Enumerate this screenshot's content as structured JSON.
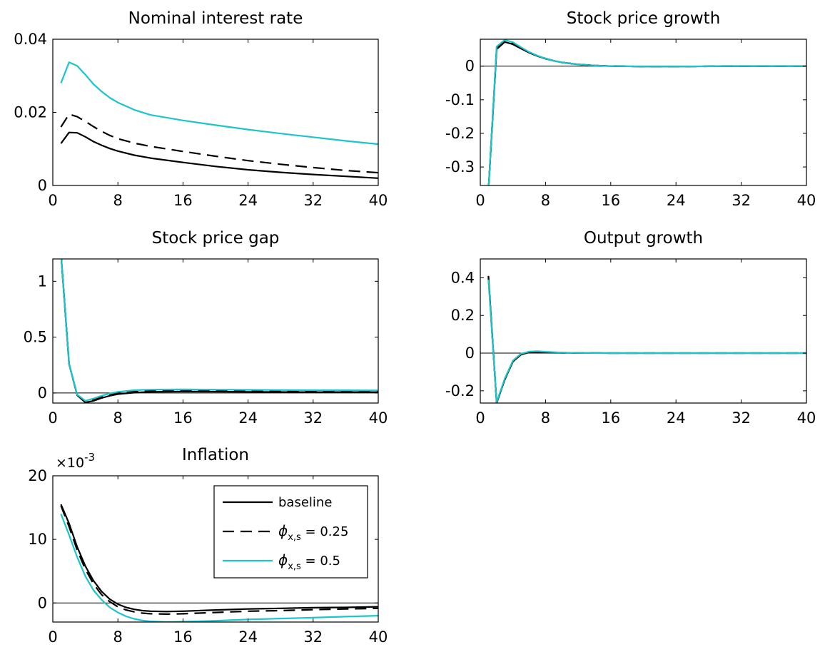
{
  "chart_data": [
    {
      "type": "line",
      "title": "Nominal interest rate",
      "xlim": [
        0,
        40
      ],
      "ylim": [
        0,
        0.04
      ],
      "xticks": [
        0,
        8,
        16,
        24,
        32,
        40
      ],
      "xtick_labels": [
        "0",
        "8",
        "16",
        "24",
        "32",
        "40"
      ],
      "yticks": [
        0,
        0.02,
        0.04
      ],
      "ytick_labels": [
        "0",
        "0.02",
        "0.04"
      ],
      "zero_line": false,
      "series": [
        {
          "style": "baseline",
          "color": "#000000",
          "dash": "solid",
          "x": [
            1,
            2,
            3,
            4,
            5,
            6,
            7,
            8,
            10,
            12,
            16,
            20,
            24,
            28,
            32,
            36,
            40
          ],
          "y": [
            0.0115,
            0.0145,
            0.0144,
            0.0133,
            0.012,
            0.011,
            0.0101,
            0.0094,
            0.0083,
            0.0075,
            0.0063,
            0.0052,
            0.0043,
            0.0036,
            0.003,
            0.0025,
            0.002
          ]
        },
        {
          "style": "phi_025",
          "color": "#000000",
          "dash": "dashed",
          "x": [
            1,
            2,
            3,
            4,
            5,
            6,
            7,
            8,
            10,
            12,
            16,
            20,
            24,
            28,
            32,
            36,
            40
          ],
          "y": [
            0.016,
            0.0195,
            0.0188,
            0.0175,
            0.0161,
            0.0148,
            0.0137,
            0.0128,
            0.0116,
            0.0107,
            0.0093,
            0.008,
            0.0068,
            0.0058,
            0.0049,
            0.0041,
            0.0035
          ]
        },
        {
          "style": "phi_05",
          "color": "#1bc5c9",
          "dash": "solid",
          "x": [
            1,
            2,
            3,
            4,
            5,
            6,
            7,
            8,
            10,
            12,
            16,
            20,
            24,
            28,
            32,
            36,
            40
          ],
          "y": [
            0.028,
            0.0337,
            0.0327,
            0.0303,
            0.0277,
            0.0257,
            0.024,
            0.0227,
            0.0207,
            0.0193,
            0.0178,
            0.0165,
            0.0153,
            0.0142,
            0.0132,
            0.0122,
            0.0113
          ]
        }
      ]
    },
    {
      "type": "line",
      "title": "Stock price growth",
      "xlim": [
        0,
        40
      ],
      "ylim": [
        -0.355,
        0.08
      ],
      "xticks": [
        0,
        8,
        16,
        24,
        32,
        40
      ],
      "xtick_labels": [
        "0",
        "8",
        "16",
        "24",
        "32",
        "40"
      ],
      "yticks": [
        -0.3,
        -0.2,
        -0.1,
        0
      ],
      "ytick_labels": [
        "-0.3",
        "-0.2",
        "-0.1",
        "0"
      ],
      "zero_line": true,
      "series": [
        {
          "style": "baseline",
          "color": "#000000",
          "dash": "solid",
          "x": [
            1,
            2,
            3,
            4,
            5,
            6,
            7,
            8,
            9,
            10,
            12,
            14,
            16,
            20,
            24,
            32,
            40
          ],
          "y": [
            -0.37,
            0.05,
            0.072,
            0.065,
            0.052,
            0.04,
            0.03,
            0.022,
            0.016,
            0.011,
            0.005,
            0.002,
            0.0,
            -0.001,
            -0.001,
            0.0,
            0.0
          ]
        },
        {
          "style": "phi_025",
          "color": "#000000",
          "dash": "dashed",
          "x": [
            1,
            2,
            3,
            4,
            5,
            6,
            7,
            8,
            9,
            10,
            12,
            14,
            16,
            20,
            24,
            32,
            40
          ],
          "y": [
            -0.37,
            0.055,
            0.075,
            0.068,
            0.054,
            0.041,
            0.031,
            0.023,
            0.016,
            0.011,
            0.005,
            0.002,
            0.0,
            -0.001,
            -0.001,
            0.0,
            0.0
          ]
        },
        {
          "style": "phi_05",
          "color": "#1bc5c9",
          "dash": "solid",
          "x": [
            1,
            2,
            3,
            4,
            5,
            6,
            7,
            8,
            9,
            10,
            12,
            14,
            16,
            20,
            24,
            32,
            40
          ],
          "y": [
            -0.37,
            0.058,
            0.078,
            0.071,
            0.056,
            0.042,
            0.031,
            0.023,
            0.016,
            0.011,
            0.005,
            0.002,
            0.0,
            -0.001,
            -0.001,
            0.0,
            0.0
          ]
        }
      ]
    },
    {
      "type": "line",
      "title": "Stock price gap",
      "xlim": [
        0,
        40
      ],
      "ylim": [
        -0.09,
        1.2
      ],
      "xticks": [
        0,
        8,
        16,
        24,
        32,
        40
      ],
      "xtick_labels": [
        "0",
        "8",
        "16",
        "24",
        "32",
        "40"
      ],
      "yticks": [
        0,
        0.5,
        1
      ],
      "ytick_labels": [
        "0",
        "0.5",
        "1"
      ],
      "zero_line": true,
      "series": [
        {
          "style": "baseline",
          "color": "#000000",
          "dash": "solid",
          "x": [
            1,
            2,
            3,
            4,
            5,
            6,
            7,
            8,
            10,
            12,
            16,
            20,
            24,
            32,
            40
          ],
          "y": [
            1.25,
            0.26,
            -0.02,
            -0.085,
            -0.07,
            -0.045,
            -0.025,
            -0.01,
            0.003,
            0.01,
            0.013,
            0.012,
            0.01,
            0.008,
            0.007
          ]
        },
        {
          "style": "phi_025",
          "color": "#000000",
          "dash": "dashed",
          "x": [
            1,
            2,
            3,
            4,
            5,
            6,
            7,
            8,
            10,
            12,
            16,
            20,
            24,
            32,
            40
          ],
          "y": [
            1.25,
            0.26,
            -0.02,
            -0.078,
            -0.06,
            -0.037,
            -0.017,
            -0.002,
            0.012,
            0.018,
            0.022,
            0.021,
            0.018,
            0.015,
            0.014
          ]
        },
        {
          "style": "phi_05",
          "color": "#1bc5c9",
          "dash": "solid",
          "x": [
            1,
            2,
            3,
            4,
            5,
            6,
            7,
            8,
            10,
            12,
            16,
            20,
            24,
            32,
            40
          ],
          "y": [
            1.25,
            0.26,
            -0.015,
            -0.07,
            -0.05,
            -0.025,
            -0.005,
            0.01,
            0.025,
            0.03,
            0.032,
            0.03,
            0.028,
            0.025,
            0.023
          ]
        }
      ]
    },
    {
      "type": "line",
      "title": "Output growth",
      "xlim": [
        0,
        40
      ],
      "ylim": [
        -0.265,
        0.5
      ],
      "xticks": [
        0,
        8,
        16,
        24,
        32,
        40
      ],
      "xtick_labels": [
        "0",
        "8",
        "16",
        "24",
        "32",
        "40"
      ],
      "yticks": [
        -0.2,
        0,
        0.2,
        0.4
      ],
      "ytick_labels": [
        "-0.2",
        "0",
        "0.2",
        "0.4"
      ],
      "zero_line": true,
      "series": [
        {
          "style": "baseline",
          "color": "#000000",
          "dash": "solid",
          "x": [
            1,
            2,
            3,
            4,
            5,
            6,
            7,
            8,
            10,
            12,
            16,
            24,
            32,
            40
          ],
          "y": [
            0.41,
            -0.265,
            -0.14,
            -0.045,
            -0.008,
            0.004,
            0.006,
            0.004,
            0.002,
            0.001,
            0.0,
            0.0,
            0.0,
            0.0
          ]
        },
        {
          "style": "phi_025",
          "color": "#000000",
          "dash": "dashed",
          "x": [
            1,
            2,
            3,
            4,
            5,
            6,
            7,
            8,
            10,
            12,
            16,
            24,
            32,
            40
          ],
          "y": [
            0.4,
            -0.262,
            -0.14,
            -0.044,
            -0.006,
            0.006,
            0.008,
            0.005,
            0.002,
            0.001,
            0.0,
            0.0,
            0.0,
            0.0
          ]
        },
        {
          "style": "phi_05",
          "color": "#1bc5c9",
          "dash": "solid",
          "x": [
            1,
            2,
            3,
            4,
            5,
            6,
            7,
            8,
            10,
            12,
            16,
            24,
            32,
            40
          ],
          "y": [
            0.39,
            -0.26,
            -0.135,
            -0.04,
            -0.003,
            0.008,
            0.01,
            0.007,
            0.003,
            0.001,
            0.0,
            0.0,
            0.0,
            0.0
          ]
        }
      ]
    },
    {
      "type": "line",
      "title": "Inflation",
      "xlim": [
        0,
        40
      ],
      "ylim": [
        -3,
        20
      ],
      "xticks": [
        0,
        8,
        16,
        24,
        32,
        40
      ],
      "xtick_labels": [
        "0",
        "8",
        "16",
        "24",
        "32",
        "40"
      ],
      "yticks": [
        0,
        10,
        20
      ],
      "ytick_labels": [
        "0",
        "10",
        "20"
      ],
      "y_exponent_base": "×10",
      "y_exponent_power": "-3",
      "zero_line": true,
      "legend": {
        "position": "upper-right",
        "entries": [
          {
            "style": "baseline",
            "color": "#000000",
            "dash": "solid",
            "text": "baseline"
          },
          {
            "style": "phi_025",
            "color": "#000000",
            "dash": "dashed",
            "symbol": "ϕ",
            "subscript": "x,s",
            "text": " = 0.25"
          },
          {
            "style": "phi_05",
            "color": "#1bc5c9",
            "dash": "solid",
            "symbol": "ϕ",
            "subscript": "x,s",
            "text": " = 0.5"
          }
        ]
      },
      "series": [
        {
          "style": "baseline",
          "color": "#000000",
          "dash": "solid",
          "x": [
            1,
            2,
            3,
            4,
            5,
            6,
            7,
            8,
            9,
            10,
            11,
            12,
            14,
            16,
            20,
            24,
            28,
            32,
            36,
            40
          ],
          "y": [
            15.5,
            12.5,
            8.8,
            5.8,
            3.5,
            1.8,
            0.6,
            -0.2,
            -0.7,
            -1.0,
            -1.2,
            -1.3,
            -1.35,
            -1.3,
            -1.1,
            -0.95,
            -0.85,
            -0.75,
            -0.7,
            -0.6
          ]
        },
        {
          "style": "phi_025",
          "color": "#000000",
          "dash": "dashed",
          "x": [
            1,
            2,
            3,
            4,
            5,
            6,
            7,
            8,
            9,
            10,
            11,
            12,
            14,
            16,
            20,
            24,
            28,
            32,
            36,
            40
          ],
          "y": [
            15.3,
            12.0,
            8.3,
            5.3,
            3.0,
            1.3,
            0.2,
            -0.6,
            -1.1,
            -1.4,
            -1.6,
            -1.7,
            -1.75,
            -1.7,
            -1.5,
            -1.3,
            -1.2,
            -1.05,
            -0.95,
            -0.85
          ]
        },
        {
          "style": "phi_05",
          "color": "#1bc5c9",
          "dash": "solid",
          "x": [
            1,
            2,
            3,
            4,
            5,
            6,
            7,
            8,
            9,
            10,
            11,
            12,
            14,
            16,
            20,
            24,
            28,
            32,
            36,
            40
          ],
          "y": [
            14.0,
            10.7,
            7.2,
            4.2,
            2.0,
            0.5,
            -0.7,
            -1.5,
            -2.1,
            -2.5,
            -2.75,
            -2.9,
            -3.0,
            -2.95,
            -2.8,
            -2.6,
            -2.45,
            -2.3,
            -2.15,
            -2.0
          ]
        }
      ]
    }
  ]
}
